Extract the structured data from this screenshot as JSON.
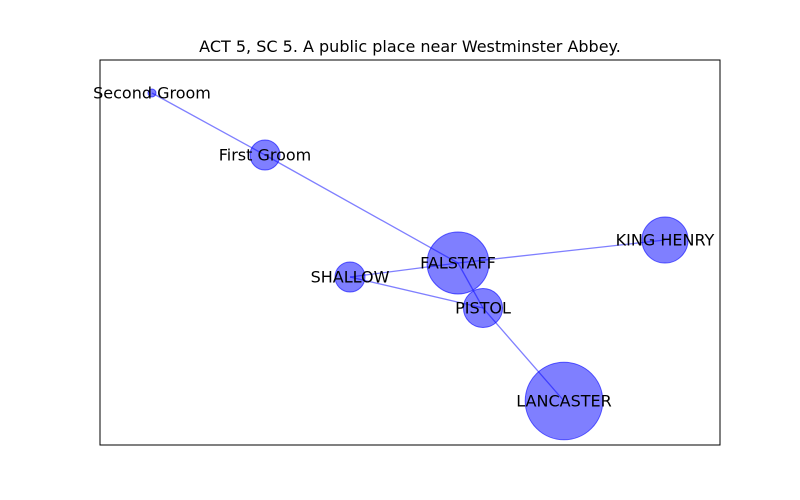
{
  "title": "ACT 5, SC 5. A public place near Westminster Abbey.",
  "colors": {
    "node_fill": "#0000ff",
    "node_fill_opacity": 0.5,
    "edge_stroke": "#0000ff",
    "edge_opacity": 0.5,
    "frame": "#000000",
    "background": "#ffffff"
  },
  "nodes": [
    {
      "id": "second-groom",
      "label": "Second Groom",
      "weight": 0
    },
    {
      "id": "first-groom",
      "label": "First Groom",
      "weight": 1
    },
    {
      "id": "falstaff",
      "label": "FALSTAFF",
      "weight": 6
    },
    {
      "id": "king-henry",
      "label": "KING HENRY",
      "weight": 3
    },
    {
      "id": "shallow",
      "label": "SHALLOW",
      "weight": 1
    },
    {
      "id": "pistol",
      "label": "PISTOL",
      "weight": 2
    },
    {
      "id": "lancaster",
      "label": "LANCASTER",
      "weight": 10
    }
  ],
  "edges": [
    {
      "source": "second-groom",
      "target": "first-groom"
    },
    {
      "source": "first-groom",
      "target": "falstaff"
    },
    {
      "source": "falstaff",
      "target": "king-henry"
    },
    {
      "source": "falstaff",
      "target": "shallow"
    },
    {
      "source": "falstaff",
      "target": "pistol"
    },
    {
      "source": "shallow",
      "target": "pistol"
    },
    {
      "source": "pistol",
      "target": "lancaster"
    }
  ]
}
